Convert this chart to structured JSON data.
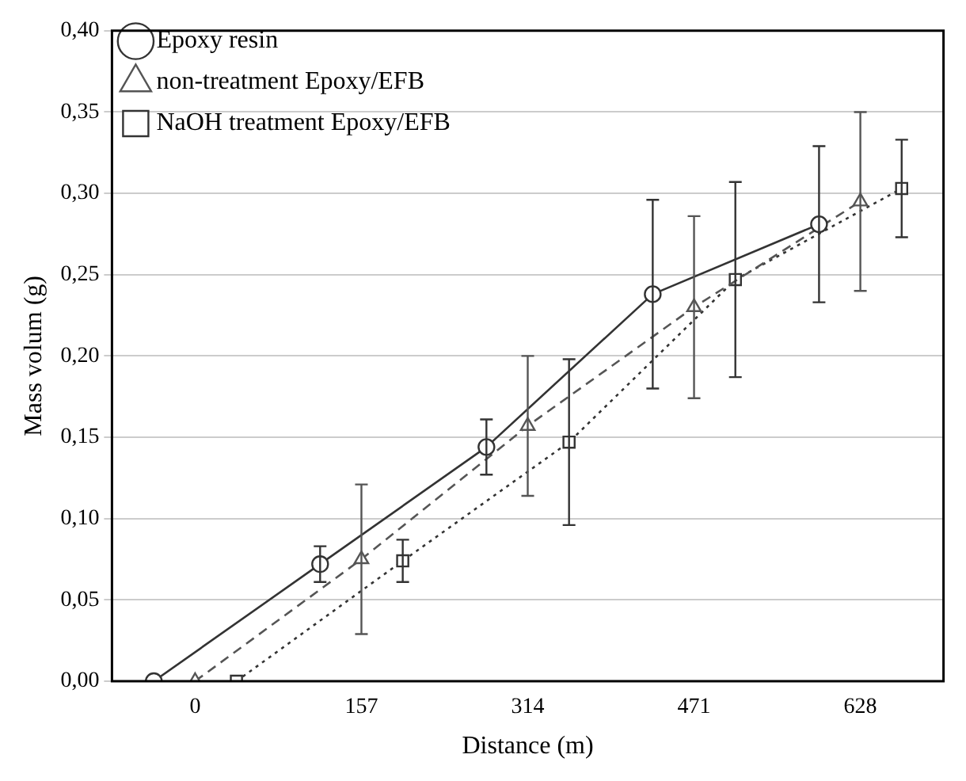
{
  "chart_data": {
    "type": "line",
    "xlabel": "Distance (m)",
    "ylabel": "Mass volum (g)",
    "xlim": [
      -78.5,
      706.5
    ],
    "xticks": [
      0,
      157,
      314,
      471,
      628
    ],
    "ylim": [
      0,
      0.4
    ],
    "yticks": [
      {
        "value": 0,
        "label": "0,00"
      },
      {
        "value": 0.05,
        "label": "0,05"
      },
      {
        "value": 0.1,
        "label": "0,10"
      },
      {
        "value": 0.15,
        "label": "0,15"
      },
      {
        "value": 0.2,
        "label": "0,20"
      },
      {
        "value": 0.25,
        "label": "0,25"
      },
      {
        "value": 0.3,
        "label": "0,30"
      },
      {
        "value": 0.35,
        "label": "0,35"
      },
      {
        "value": 0.4,
        "label": "0,40"
      }
    ],
    "grid": "y",
    "legend": "top left",
    "series": [
      {
        "name": "Epoxy resin",
        "color": "#333333",
        "marker": "circle",
        "line_style": "solid",
        "x": [
          -39,
          118,
          275,
          432,
          589
        ],
        "values": [
          0,
          0.072,
          0.144,
          0.238,
          0.281
        ],
        "errors": [
          null,
          0.011,
          0.017,
          0.058,
          0.048
        ]
      },
      {
        "name": "non-treatment Epoxy/EFB",
        "color": "#555555",
        "marker": "triangle",
        "line_style": "dashed",
        "x": [
          0,
          157,
          314,
          471,
          628
        ],
        "values": [
          0,
          0.075,
          0.157,
          0.23,
          0.295
        ],
        "errors": [
          null,
          0.046,
          0.043,
          0.056,
          0.055
        ]
      },
      {
        "name": "NaOH treatment Epoxy/EFB",
        "color": "#333333",
        "marker": "square",
        "line_style": "dotted",
        "x": [
          39,
          196,
          353,
          510,
          667
        ],
        "values": [
          0,
          0.074,
          0.147,
          0.247,
          0.303
        ],
        "errors": [
          null,
          0.013,
          0.051,
          0.06,
          0.03
        ]
      }
    ]
  }
}
